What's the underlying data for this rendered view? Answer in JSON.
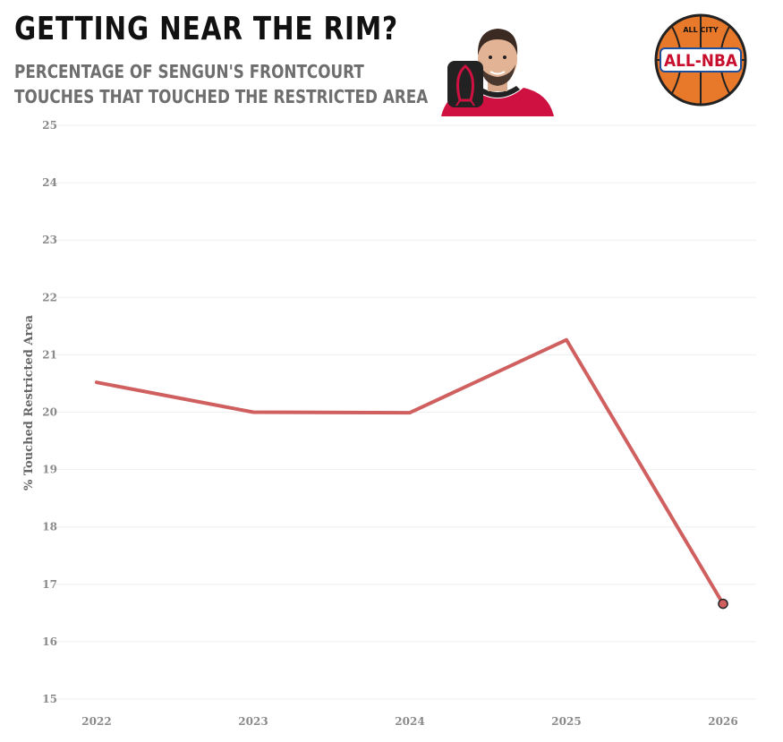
{
  "header": {
    "title": "GETTING NEAR THE RIM?",
    "subtitle_line1": "PERCENTAGE OF SENGUN'S FRONTCOURT",
    "subtitle_line2": "TOUCHES THAT TOUCHED THE RESTRICTED AREA"
  },
  "logo": {
    "top_text": "ALL CITY",
    "main_text": "ALL-NBA"
  },
  "colors": {
    "line": "#d06060",
    "grid": "#eeeeee",
    "ball_orange": "#e8782a",
    "jersey_red": "#ce1141"
  },
  "chart_data": {
    "type": "line",
    "ylabel": "% Touched Restricted Area",
    "xlabel": "",
    "x": [
      "2022",
      "2023",
      "2024",
      "2025",
      "2026"
    ],
    "y_ticks": [
      "25",
      "24",
      "23",
      "22",
      "21",
      "20",
      "19",
      "18",
      "17",
      "16",
      "15"
    ],
    "ylim": [
      15,
      25
    ],
    "grid": true,
    "series": [
      {
        "values": [
          20.52,
          20.0,
          19.99,
          21.26,
          16.66
        ]
      }
    ]
  }
}
